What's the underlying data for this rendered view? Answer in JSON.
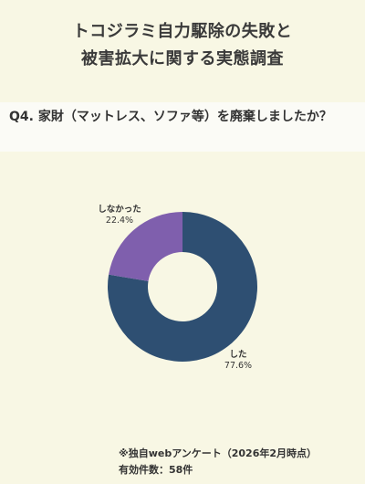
{
  "title_line1": "トコジラミ自力駆除の失敗と",
  "title_line2": "被害拡大に関する実態調査",
  "question": "Q4. 家財（マットレス、ソファ等）を廃棄しましたか？",
  "chart_data": {
    "type": "pie",
    "donut": true,
    "categories": [
      "した",
      "しなかった"
    ],
    "values": [
      77.6,
      22.4
    ],
    "labels": [
      "77.6%",
      "22.4%"
    ],
    "colors": [
      "#2e4f72",
      "#7f5fad"
    ]
  },
  "footnote_line1": "※独自webアンケート（2026年2月時点）",
  "footnote_line2": "有効件数：58件"
}
